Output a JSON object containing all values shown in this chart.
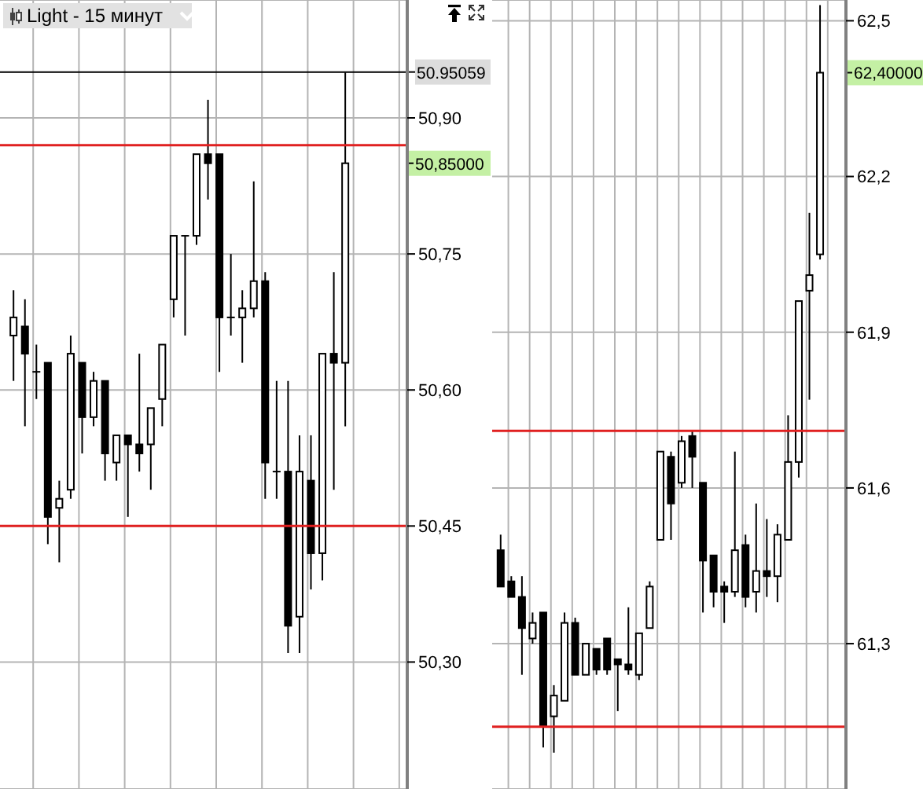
{
  "chart_data": [
    {
      "type": "candlestick",
      "title": "Light - 15 минут",
      "color": "#000000",
      "grid": true,
      "tick_labels": "y",
      "categories": [
        null,
        null,
        null,
        null,
        null,
        null,
        null,
        null,
        null,
        null,
        null,
        null,
        null,
        null,
        null,
        null,
        null,
        null,
        null,
        null,
        null,
        null,
        null,
        null,
        null,
        null,
        null,
        null,
        null,
        null
      ],
      "ohlc": [
        [
          50.66,
          50.71,
          50.61,
          50.68
        ],
        [
          50.67,
          50.7,
          50.56,
          50.64
        ],
        [
          50.62,
          50.65,
          50.59,
          50.62
        ],
        [
          50.63,
          50.63,
          50.43,
          50.46
        ],
        [
          50.47,
          50.5,
          50.41,
          50.48
        ],
        [
          50.49,
          50.66,
          50.48,
          50.64
        ],
        [
          50.63,
          50.63,
          50.53,
          50.57
        ],
        [
          50.57,
          50.62,
          50.56,
          50.61
        ],
        [
          50.61,
          50.61,
          50.5,
          50.53
        ],
        [
          50.52,
          50.55,
          50.5,
          50.55
        ],
        [
          50.55,
          50.55,
          50.46,
          50.54
        ],
        [
          50.54,
          50.64,
          50.51,
          50.53
        ],
        [
          50.54,
          50.58,
          50.49,
          50.58
        ],
        [
          50.59,
          50.65,
          50.56,
          50.65
        ],
        [
          50.7,
          50.77,
          50.68,
          50.77
        ],
        [
          50.77,
          50.77,
          50.66,
          50.77
        ],
        [
          50.77,
          50.86,
          50.76,
          50.86
        ],
        [
          50.86,
          50.92,
          50.81,
          50.85
        ],
        [
          50.86,
          50.86,
          50.62,
          50.68
        ],
        [
          50.68,
          50.75,
          50.66,
          50.68
        ],
        [
          50.68,
          50.71,
          50.63,
          50.69
        ],
        [
          50.69,
          50.83,
          50.68,
          50.72
        ],
        [
          50.72,
          50.73,
          50.48,
          50.52
        ],
        [
          50.51,
          50.61,
          50.48,
          50.51
        ],
        [
          50.51,
          50.61,
          50.31,
          50.34
        ],
        [
          50.35,
          50.55,
          50.31,
          50.51
        ],
        [
          50.5,
          50.55,
          50.38,
          50.42
        ],
        [
          50.42,
          50.64,
          50.39,
          50.64
        ],
        [
          50.64,
          50.73,
          50.49,
          50.63
        ],
        [
          50.63,
          50.95,
          50.56,
          50.85
        ]
      ],
      "ylim": [
        50.16,
        51.03
      ],
      "yticks": [
        {
          "value": 50.3,
          "label": "50,30"
        },
        {
          "value": 50.45,
          "label": "50,45"
        },
        {
          "value": 50.6,
          "label": "50,60"
        },
        {
          "value": 50.75,
          "label": "50,75"
        },
        {
          "value": 50.9,
          "label": "50,90"
        }
      ],
      "ref_lines": [
        {
          "axis": "y",
          "value": 50.95059,
          "label": "50.95059",
          "color": "#000000"
        },
        {
          "axis": "y",
          "value": 50.87,
          "color": "#e02020"
        },
        {
          "axis": "y",
          "value": 50.45,
          "color": "#e02020"
        }
      ],
      "annotations": [
        "50,85000"
      ]
    },
    {
      "type": "candlestick",
      "color": "#000000",
      "grid": true,
      "tick_labels": "y",
      "categories": [
        null,
        null,
        null,
        null,
        null,
        null,
        null,
        null,
        null,
        null,
        null,
        null,
        null,
        null,
        null,
        null,
        null,
        null,
        null,
        null,
        null,
        null,
        null,
        null,
        null,
        null,
        null,
        null,
        null,
        null,
        null
      ],
      "ohlc": [
        [
          61.48,
          61.51,
          61.41,
          61.41
        ],
        [
          61.42,
          61.43,
          61.39,
          61.39
        ],
        [
          61.39,
          61.43,
          61.24,
          61.33
        ],
        [
          61.31,
          61.36,
          61.3,
          61.34
        ],
        [
          61.36,
          61.36,
          61.1,
          61.14
        ],
        [
          61.16,
          61.22,
          61.09,
          61.2
        ],
        [
          61.19,
          61.36,
          61.19,
          61.34
        ],
        [
          61.34,
          61.35,
          61.24,
          61.24
        ],
        [
          61.24,
          61.3,
          61.24,
          61.3
        ],
        [
          61.29,
          61.29,
          61.24,
          61.25
        ],
        [
          61.31,
          61.31,
          61.24,
          61.25
        ],
        [
          61.27,
          61.27,
          61.17,
          61.26
        ],
        [
          61.26,
          61.37,
          61.24,
          61.25
        ],
        [
          61.24,
          61.32,
          61.23,
          61.32
        ],
        [
          61.33,
          61.42,
          61.33,
          61.41
        ],
        [
          61.5,
          61.67,
          61.5,
          61.67
        ],
        [
          61.66,
          61.67,
          61.5,
          61.57
        ],
        [
          61.61,
          61.7,
          61.6,
          61.69
        ],
        [
          61.7,
          61.71,
          61.6,
          61.66
        ],
        [
          61.61,
          61.61,
          61.36,
          61.46
        ],
        [
          61.47,
          61.47,
          61.37,
          61.4
        ],
        [
          61.41,
          61.42,
          61.34,
          61.4
        ],
        [
          61.4,
          61.67,
          61.39,
          61.48
        ],
        [
          61.49,
          61.51,
          61.37,
          61.39
        ],
        [
          61.4,
          61.57,
          61.36,
          61.44
        ],
        [
          61.44,
          61.54,
          61.39,
          61.43
        ],
        [
          61.43,
          61.53,
          61.38,
          61.51
        ],
        [
          61.5,
          61.74,
          61.5,
          61.65
        ],
        [
          61.65,
          61.96,
          61.62,
          61.96
        ],
        [
          61.98,
          62.13,
          61.77,
          62.01
        ],
        [
          62.05,
          62.53,
          62.04,
          62.4
        ]
      ],
      "ylim": [
        61.02,
        62.54
      ],
      "yticks": [
        {
          "value": 61.3,
          "label": "61,3"
        },
        {
          "value": 61.6,
          "label": "61,6"
        },
        {
          "value": 61.9,
          "label": "61,9"
        },
        {
          "value": 62.2,
          "label": "62,2"
        },
        {
          "value": 62.5,
          "label": "62,5"
        }
      ],
      "ref_lines": [
        {
          "axis": "y",
          "value": 61.71,
          "color": "#e02020"
        },
        {
          "axis": "y",
          "value": 61.14,
          "color": "#e02020"
        }
      ],
      "annotations": [
        "62,40000"
      ]
    }
  ]
}
